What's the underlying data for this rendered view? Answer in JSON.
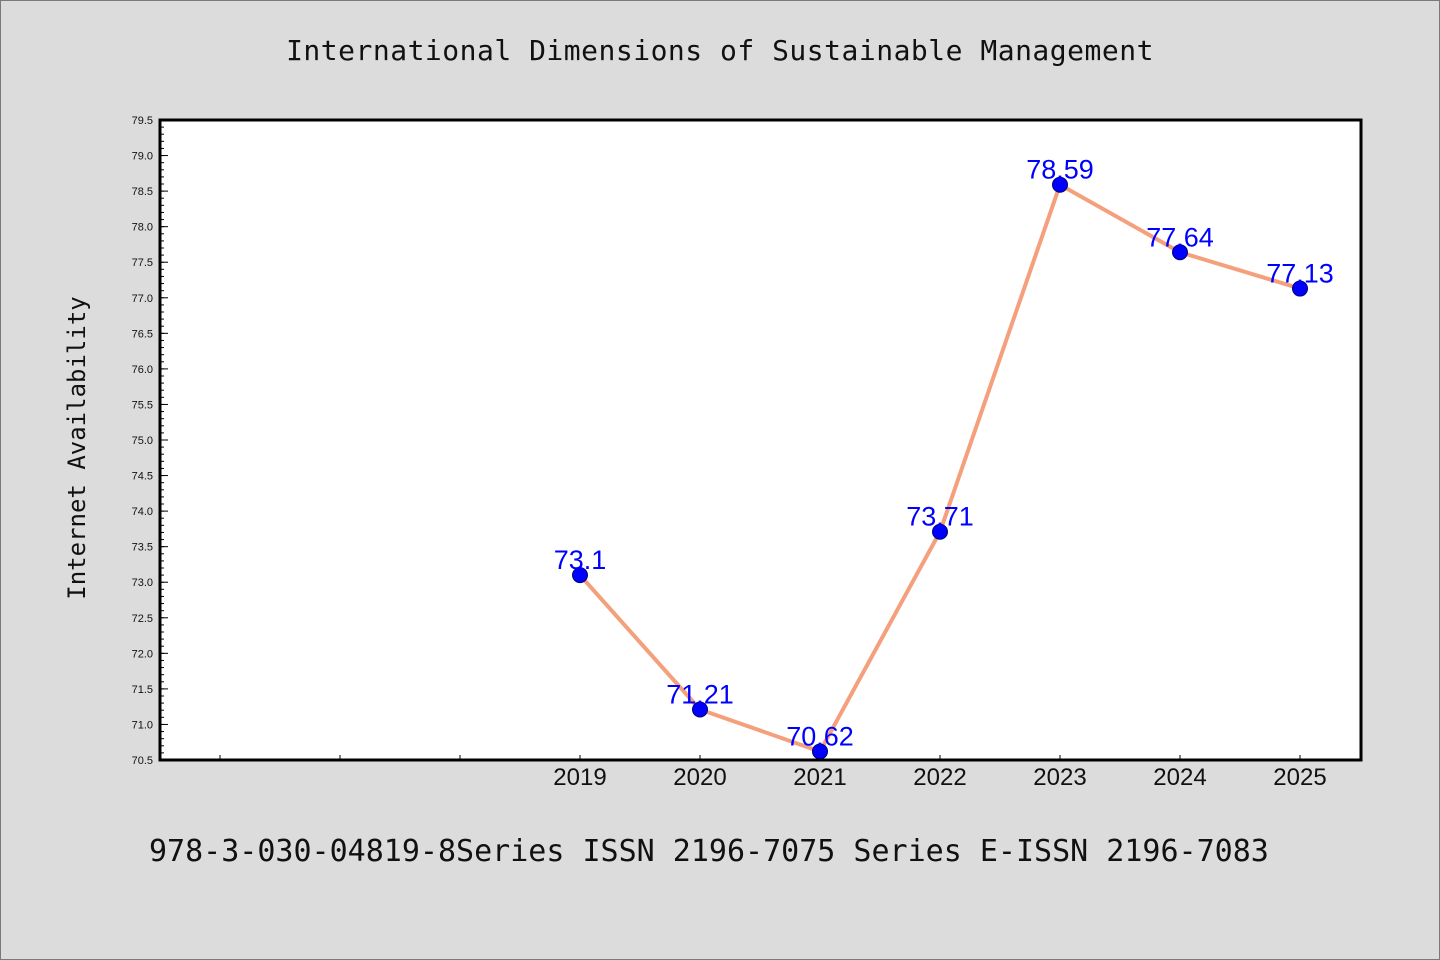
{
  "chart_data": {
    "type": "line",
    "title": "International Dimensions of Sustainable Management",
    "xlabel": "",
    "ylabel": "Internet Availability",
    "categories": [
      "2019",
      "2020",
      "2021",
      "2022",
      "2023",
      "2024",
      "2025"
    ],
    "series": [
      {
        "values": [
          73.1,
          71.21,
          70.62,
          73.71,
          78.59,
          77.64,
          77.13
        ],
        "labels": [
          "73.1",
          "71.21",
          "70.62",
          "73.71",
          "78.59",
          "77.64",
          "77.13"
        ],
        "line_color": "#f4a07c",
        "marker_color": "#0000ff"
      }
    ],
    "ylim": [
      70.5,
      79.5
    ],
    "yticks": [
      "70.5",
      "71.0",
      "71.5",
      "72.0",
      "72.5",
      "73.0",
      "73.5",
      "74.0",
      "74.5",
      "75.0",
      "75.5",
      "76.0",
      "76.5",
      "77.0",
      "77.5",
      "78.0",
      "78.5",
      "79.0",
      "79.5"
    ],
    "grid": false,
    "legend": "none",
    "data_label_color": "#0000ff"
  },
  "footer": {
    "text": "978-3-030-04819-8Series ISSN 2196-7075 Series E-ISSN 2196-7083"
  },
  "colors": {
    "background": "#dcdcdc",
    "plot_area": "#ffffff",
    "axis": "#000000"
  }
}
